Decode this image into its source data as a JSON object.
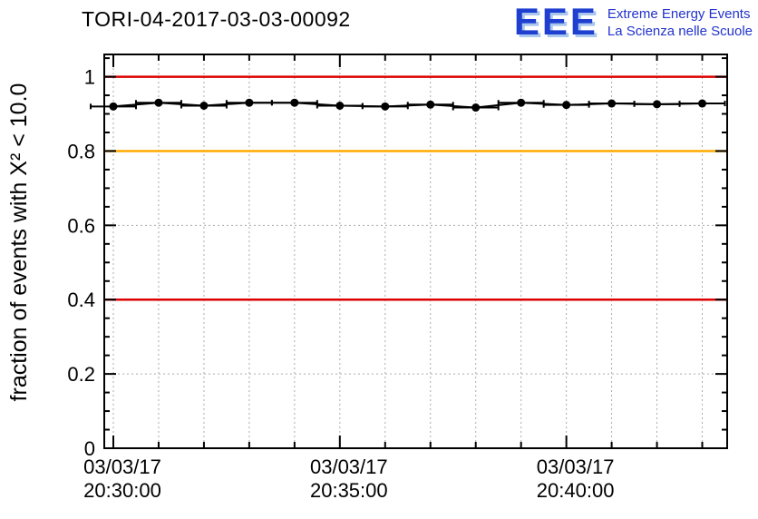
{
  "header": {
    "title": "TORI-04-2017-03-03-00092"
  },
  "logo": {
    "eee": "EEE",
    "line1": "Extreme Energy Events",
    "line2": "La Scienza nelle Scuole",
    "color": "#1f3fd0",
    "shadow": "#a9c6ec"
  },
  "chart_data": {
    "type": "line",
    "title": "TORI-04-2017-03-03-00092",
    "ylabel": "fraction of events with X² < 10.0",
    "xlabel": "",
    "ylim": [
      0,
      1.06
    ],
    "xlim_minutes": [
      29.8,
      43.55
    ],
    "grid": true,
    "y_major_ticks": [
      {
        "v": 0,
        "label": "0"
      },
      {
        "v": 0.2,
        "label": "0.2"
      },
      {
        "v": 0.4,
        "label": "0.4"
      },
      {
        "v": 0.6,
        "label": "0.6"
      },
      {
        "v": 0.8,
        "label": "0.8"
      },
      {
        "v": 1.0,
        "label": "1"
      }
    ],
    "y_minor_step": 0.05,
    "x_major_ticks": [
      {
        "minute": 30,
        "label_date": "03/03/17",
        "label_time": "20:30:00"
      },
      {
        "minute": 35,
        "label_date": "03/03/17",
        "label_time": "20:35:00"
      },
      {
        "minute": 40,
        "label_date": "03/03/17",
        "label_time": "20:40:00"
      }
    ],
    "x_minor_step": 1,
    "hlines": [
      {
        "y": 1.0,
        "color": "#dd0000"
      },
      {
        "y": 0.8,
        "color": "#ffaa00"
      },
      {
        "y": 0.4,
        "color": "#dd0000"
      }
    ],
    "series": [
      {
        "name": "fraction chi2 < 10",
        "color": "#000000",
        "x_minutes": [
          30,
          31,
          32,
          33,
          34,
          35,
          36,
          37,
          38,
          39,
          40,
          41,
          42,
          43
        ],
        "values": [
          0.92,
          0.93,
          0.922,
          0.93,
          0.93,
          0.922,
          0.92,
          0.925,
          0.917,
          0.93,
          0.924,
          0.928,
          0.926,
          0.928
        ],
        "xerr_minutes": 0.5
      }
    ]
  }
}
